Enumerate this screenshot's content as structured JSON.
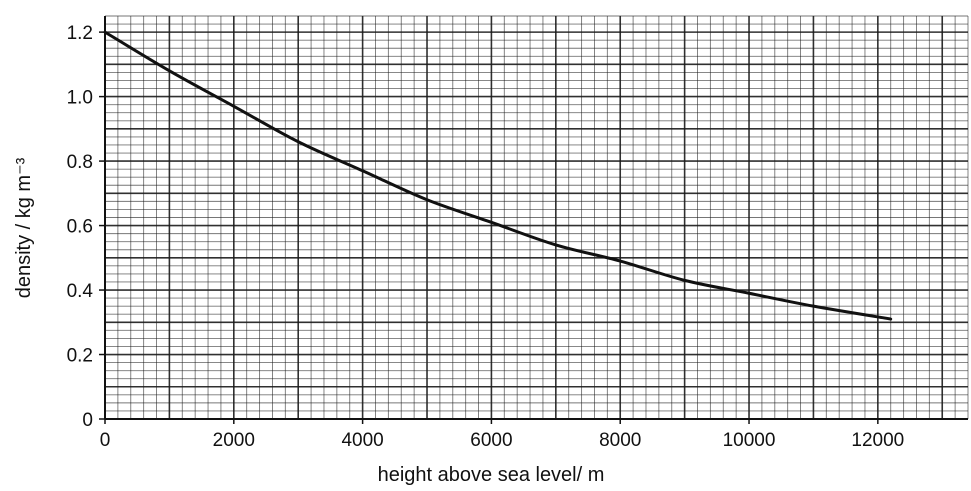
{
  "chart_data": {
    "type": "line",
    "title": "",
    "xlabel": "height above sea level/ m",
    "ylabel": "density / kg m⁻³",
    "xlim": [
      0,
      13400
    ],
    "ylim": [
      0,
      1.25
    ],
    "x_ticks": [
      0,
      2000,
      4000,
      6000,
      8000,
      10000,
      12000
    ],
    "x_tick_labels": [
      "0",
      "2000",
      "4000",
      "6000",
      "8000",
      "10000",
      "12000"
    ],
    "y_ticks": [
      0,
      0.2,
      0.4,
      0.6,
      0.8,
      1.0,
      1.2
    ],
    "y_tick_labels": [
      "0",
      "0.2",
      "0.4",
      "0.6",
      "0.8",
      "1.0",
      "1.2"
    ],
    "grid": true,
    "legend": "none",
    "colors": {
      "line": "#111111",
      "grid": "#1a1a1a",
      "background": "#ffffff"
    },
    "series": [
      {
        "values_x": [
          0,
          1000,
          2000,
          3000,
          4000,
          5000,
          6000,
          7000,
          8000,
          9000,
          10000,
          11000,
          12200
        ],
        "values_y": [
          1.2,
          1.08,
          0.97,
          0.86,
          0.77,
          0.68,
          0.61,
          0.54,
          0.49,
          0.43,
          0.39,
          0.35,
          0.31
        ]
      }
    ]
  }
}
